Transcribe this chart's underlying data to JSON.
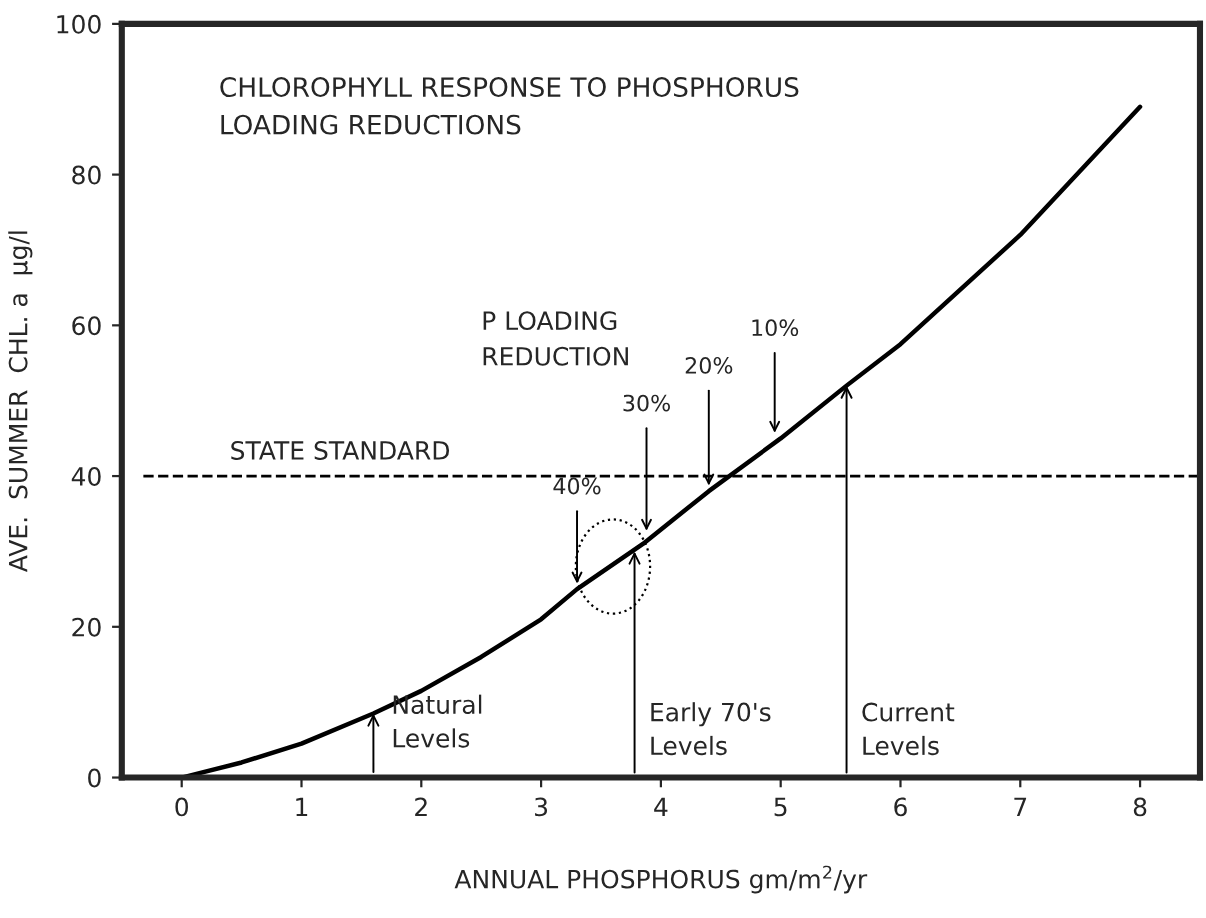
{
  "chart_data": {
    "type": "line",
    "title": "CHLOROPHYLL RESPONSE TO PHOSPHORUS\nLOADING REDUCTIONS",
    "xlabel": "ANNUAL PHOSPHORUS gm/m$^{2}$/yr",
    "ylabel": "AVE.  SUMMER  CHL. a  µg/l",
    "x": [
      0,
      0.5,
      1,
      1.6,
      2,
      2.5,
      3,
      3.3,
      3.85,
      4.4,
      5,
      5.55,
      6,
      7,
      8
    ],
    "series": [
      {
        "color": "#000000",
        "values": [
          0,
          2,
          4.5,
          8.5,
          11.5,
          16,
          21,
          25,
          31,
          38,
          45,
          52,
          57.5,
          72,
          89
        ]
      }
    ],
    "xlim": [
      -0.5,
      8.5
    ],
    "xticks": [
      0,
      1,
      2,
      3,
      4,
      5,
      6,
      7,
      8
    ],
    "ylim": [
      0,
      100
    ],
    "yticks": [
      0,
      20,
      40,
      60,
      80,
      100
    ],
    "ref_lines": [
      {
        "axis": "y",
        "value": 40,
        "label": "STATE STANDARD",
        "color": "#000000",
        "line_style": "dashed"
      }
    ],
    "annotations": [
      {
        "text": "Natural\nLevels",
        "x": 1.6,
        "y": 8.5
      },
      {
        "text": "Early 70's\nLevels",
        "x": 3.78,
        "y": 30
      },
      {
        "text": "Current\nLevels",
        "x": 5.55,
        "y": 52
      },
      {
        "text": "10%",
        "x": 4.95,
        "y": 45
      },
      {
        "text": "20%",
        "x": 4.4,
        "y": 38
      },
      {
        "text": "30%",
        "x": 3.88,
        "y": 32
      },
      {
        "text": "40%",
        "x": 3.3,
        "y": 25
      },
      "P LOADING\nREDUCTION"
    ],
    "grid": false,
    "marker": "none",
    "line_style": "solid"
  }
}
